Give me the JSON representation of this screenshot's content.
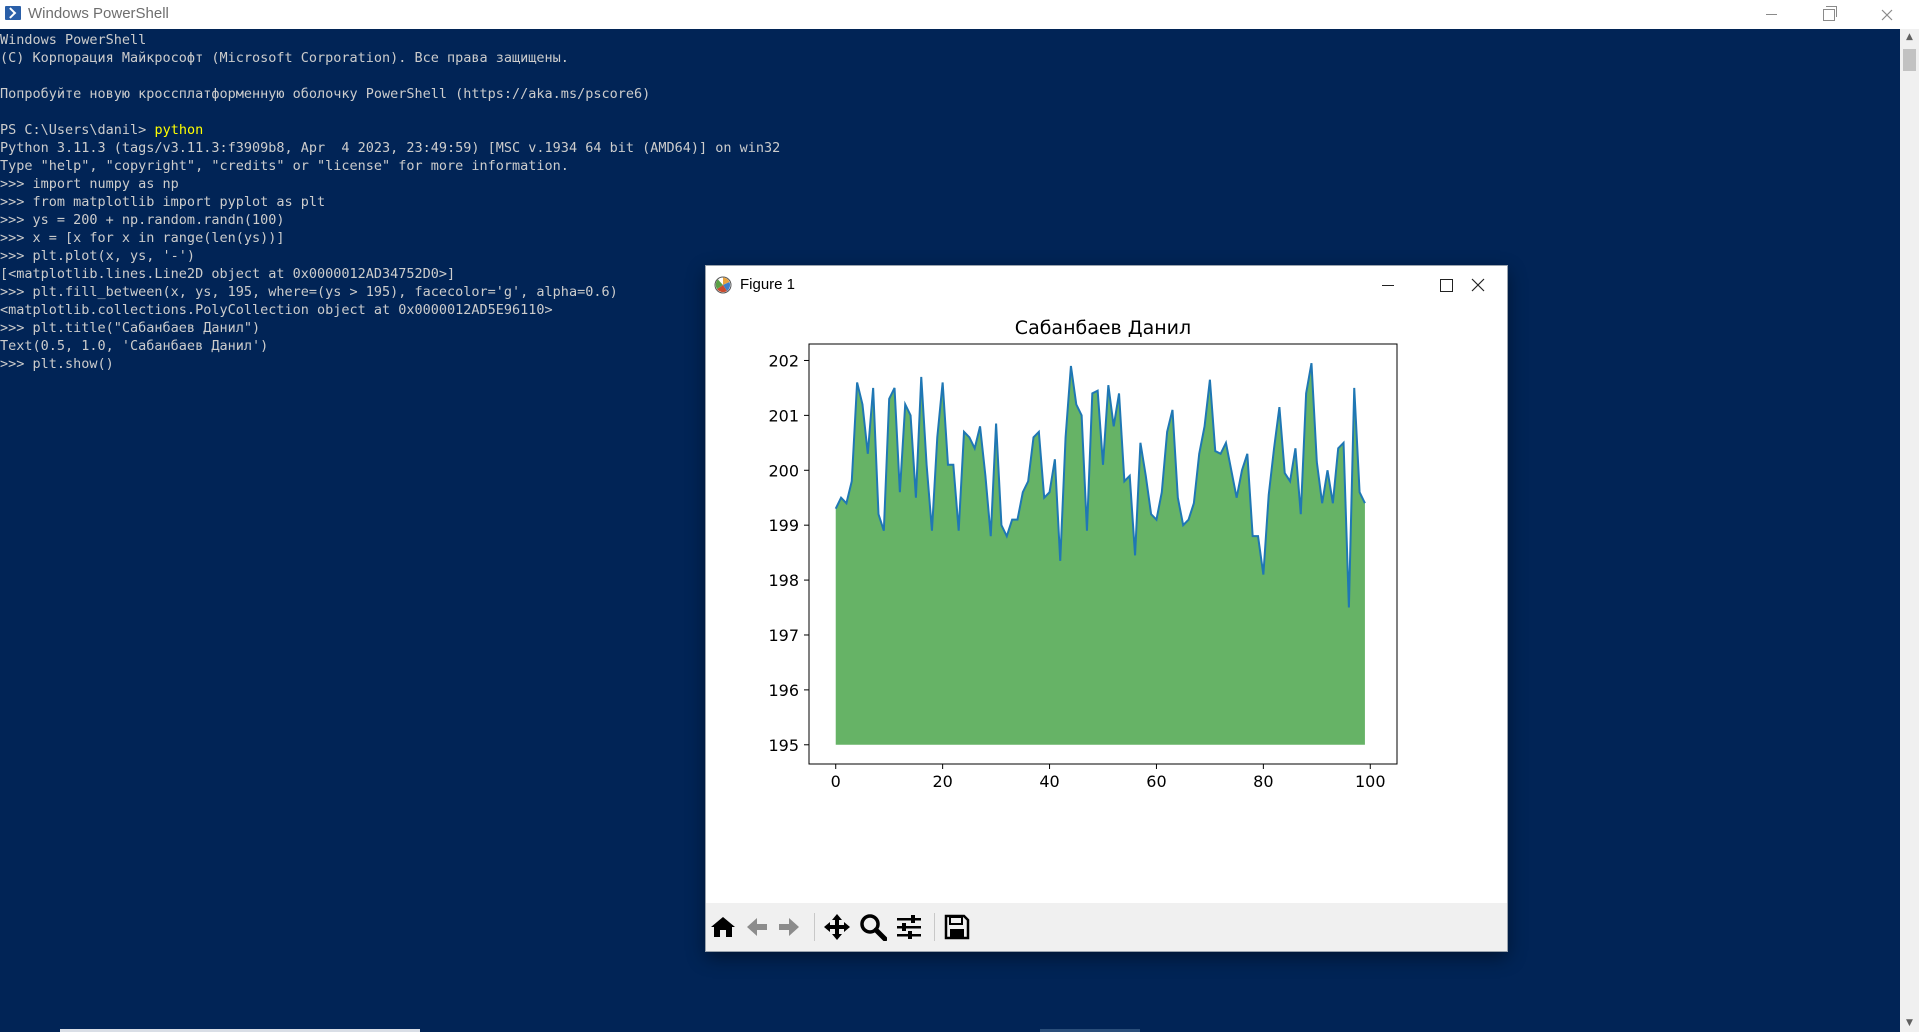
{
  "powershell": {
    "title": "Windows PowerShell",
    "lines": [
      {
        "text": "Windows PowerShell"
      },
      {
        "text": "(C) Корпорация Майкрософт (Microsoft Corporation). Все права защищены."
      },
      {
        "text": ""
      },
      {
        "text": "Попробуйте новую кроссплатформенную оболочку PowerShell (https://aka.ms/pscore6)"
      },
      {
        "text": ""
      },
      {
        "text": "PS C:\\Users\\danil> ",
        "cmd": "python"
      },
      {
        "text": "Python 3.11.3 (tags/v3.11.3:f3909b8, Apr  4 2023, 23:49:59) [MSC v.1934 64 bit (AMD64)] on win32"
      },
      {
        "text": "Type \"help\", \"copyright\", \"credits\" or \"license\" for more information."
      },
      {
        "text": ">>> import numpy as np"
      },
      {
        "text": ">>> from matplotlib import pyplot as plt"
      },
      {
        "text": ">>> ys = 200 + np.random.randn(100)"
      },
      {
        "text": ">>> x = [x for x in range(len(ys))]"
      },
      {
        "text": ">>> plt.plot(x, ys, '-')"
      },
      {
        "text": "[<matplotlib.lines.Line2D object at 0x0000012AD34752D0>]"
      },
      {
        "text": ">>> plt.fill_between(x, ys, 195, where=(ys > 195), facecolor='g', alpha=0.6)"
      },
      {
        "text": "<matplotlib.collections.PolyCollection object at 0x0000012AD5E96110>"
      },
      {
        "text": ">>> plt.title(\"Сабанбаев Данил\")"
      },
      {
        "text": "Text(0.5, 1.0, 'Сабанбаев Данил')"
      },
      {
        "text": ">>> plt.show()"
      }
    ],
    "colors": {
      "background": "#012456",
      "text": "#cccccc",
      "command": "#ffff00"
    }
  },
  "figure": {
    "title": "Figure 1",
    "toolbar": [
      "home-icon",
      "back-icon",
      "forward-icon",
      "pan-icon",
      "zoom-icon",
      "configure-subplots-icon",
      "save-icon"
    ]
  },
  "chart_data": {
    "type": "area",
    "title": "Сабанбаев Данил",
    "xlabel": "",
    "ylabel": "",
    "xlim": [
      -5,
      105
    ],
    "ylim": [
      194.65,
      202.3
    ],
    "xticks": [
      0,
      20,
      40,
      60,
      80,
      100
    ],
    "yticks": [
      195,
      196,
      197,
      198,
      199,
      200,
      201,
      202
    ],
    "fill_baseline": 195,
    "fill_color": "#008000",
    "fill_alpha": 0.6,
    "line_color": "#1f77b4",
    "x": [
      0,
      1,
      2,
      3,
      4,
      5,
      6,
      7,
      8,
      9,
      10,
      11,
      12,
      13,
      14,
      15,
      16,
      17,
      18,
      19,
      20,
      21,
      22,
      23,
      24,
      25,
      26,
      27,
      28,
      29,
      30,
      31,
      32,
      33,
      34,
      35,
      36,
      37,
      38,
      39,
      40,
      41,
      42,
      43,
      44,
      45,
      46,
      47,
      48,
      49,
      50,
      51,
      52,
      53,
      54,
      55,
      56,
      57,
      58,
      59,
      60,
      61,
      62,
      63,
      64,
      65,
      66,
      67,
      68,
      69,
      70,
      71,
      72,
      73,
      74,
      75,
      76,
      77,
      78,
      79,
      80,
      81,
      82,
      83,
      84,
      85,
      86,
      87,
      88,
      89,
      90,
      91,
      92,
      93,
      94,
      95,
      96,
      97,
      98,
      99
    ],
    "y": [
      199.3,
      199.5,
      199.4,
      199.8,
      201.6,
      201.2,
      200.3,
      201.5,
      199.2,
      198.9,
      201.3,
      201.5,
      199.6,
      201.2,
      201.0,
      199.5,
      201.7,
      200.1,
      198.9,
      200.6,
      201.6,
      200.1,
      200.1,
      198.9,
      200.7,
      200.6,
      200.4,
      200.8,
      199.9,
      198.8,
      200.85,
      199.0,
      198.8,
      199.1,
      199.1,
      199.6,
      199.8,
      200.6,
      200.7,
      199.5,
      199.6,
      200.2,
      198.35,
      200.6,
      201.9,
      201.2,
      201.0,
      198.9,
      201.4,
      201.45,
      200.1,
      201.55,
      200.8,
      201.4,
      199.8,
      199.9,
      198.45,
      200.5,
      199.9,
      199.2,
      199.1,
      199.6,
      200.7,
      201.1,
      199.5,
      199.0,
      199.1,
      199.4,
      200.3,
      200.8,
      201.65,
      200.35,
      200.3,
      200.5,
      200.0,
      199.5,
      200.0,
      200.3,
      198.8,
      198.8,
      198.1,
      199.55,
      200.4,
      201.15,
      199.95,
      199.8,
      200.4,
      199.2,
      201.4,
      201.95,
      200.15,
      199.4,
      200.0,
      199.4,
      200.4,
      200.5,
      197.5,
      201.5,
      199.6,
      199.4
    ]
  }
}
